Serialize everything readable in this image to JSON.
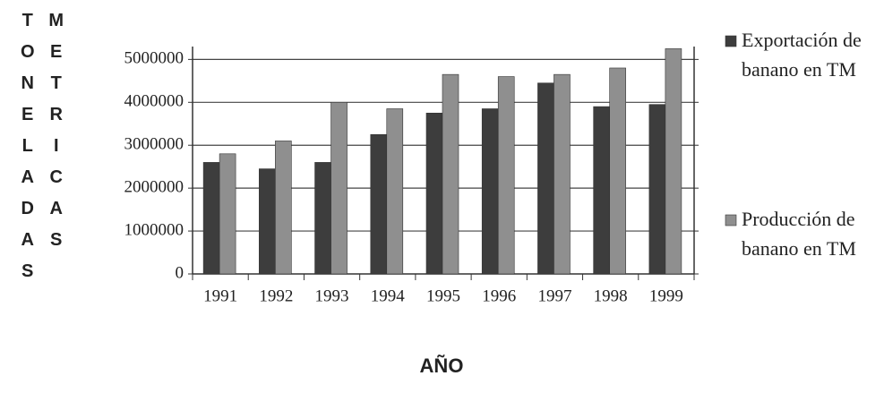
{
  "chart_data": {
    "type": "bar",
    "y_axis_label": [
      "TONELADAS",
      "METRICAS"
    ],
    "x_axis_label": "AÑO",
    "categories": [
      "1991",
      "1992",
      "1993",
      "1994",
      "1995",
      "1996",
      "1997",
      "1998",
      "1999"
    ],
    "series": [
      {
        "name": "Exportación de banano en TM",
        "color": "#3d3d3d",
        "values": [
          2600000,
          2450000,
          2600000,
          3250000,
          3750000,
          3850000,
          4450000,
          3900000,
          3950000
        ]
      },
      {
        "name": "Producción de banano en TM",
        "color": "#8f8f8f",
        "values": [
          2800000,
          3100000,
          4000000,
          3850000,
          4650000,
          4600000,
          4650000,
          4800000,
          5250000
        ]
      }
    ],
    "ylim": [
      0,
      5300000
    ],
    "yticks": [
      0,
      1000000,
      2000000,
      3000000,
      4000000,
      5000000
    ],
    "grid": true,
    "legend": "right"
  }
}
